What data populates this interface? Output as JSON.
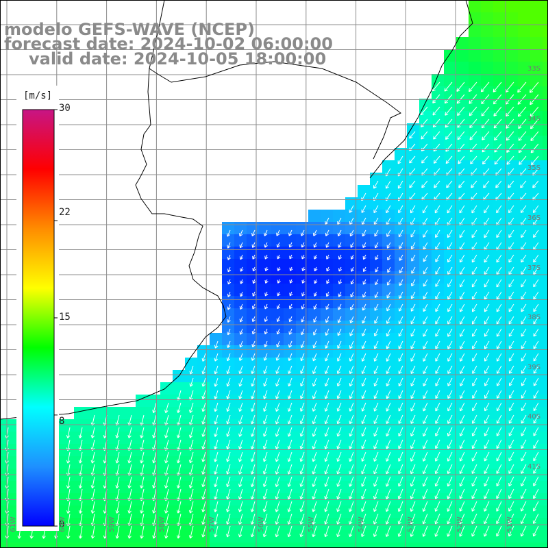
{
  "title": {
    "line1": "modelo GEFS-WAVE (NCEP)",
    "line2": "forecast date: 2024-10-02 06:00:00",
    "line3": "valid date: 2024-10-05 18:00:00"
  },
  "colorbar": {
    "units": "[m/s]",
    "min": 0,
    "max": 30,
    "tick_labels": [
      "30",
      "22",
      "15",
      "8",
      "0"
    ],
    "tick_values": [
      30,
      22,
      15,
      8,
      0
    ],
    "colors": [
      "#0000ff",
      "#1e90ff",
      "#00ffff",
      "#00ff00",
      "#ffff00",
      "#ff8c00",
      "#ff0000",
      "#c71585"
    ]
  },
  "map": {
    "field": "wind speed with direction arrows",
    "land_color": "#ffffff",
    "grid_color": "#8c8c8c",
    "coast_color": "#000000",
    "arrow_color": "#ffffff",
    "longitude_labels": [
      "61W",
      "60W",
      "59W",
      "58W",
      "57W",
      "56W",
      "55W",
      "54W",
      "53W",
      "52W",
      "51W"
    ],
    "latitude_labels": [
      "33S",
      "34S",
      "35S",
      "36S",
      "37S",
      "38S",
      "39S",
      "40S",
      "41S"
    ]
  }
}
